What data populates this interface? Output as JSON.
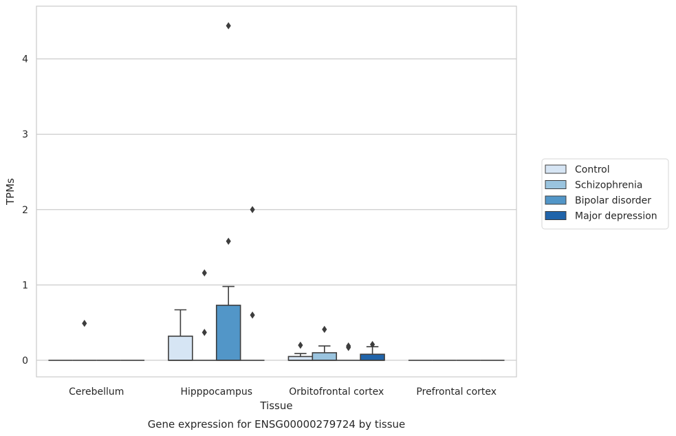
{
  "chart_data": {
    "type": "box",
    "title": "Gene expression for ENSG00000279724 by tissue",
    "xlabel": "Tissue",
    "ylabel": "TPMs",
    "ylim": [
      -0.22,
      4.7
    ],
    "yticks": [
      0,
      1,
      2,
      3,
      4
    ],
    "grid": "y",
    "legend_position": "right",
    "categories": [
      "Cerebellum",
      "Hipppocampus",
      "Orbitofrontal cortex",
      "Prefrontal cortex"
    ],
    "series": [
      {
        "name": "Control",
        "color": "#d6e5f4",
        "boxes": [
          {
            "q1": 0,
            "median": 0,
            "q3": 0,
            "whisker_low": 0,
            "whisker_high": 0,
            "outliers": []
          },
          {
            "q1": 0,
            "median": 0,
            "q3": 0.32,
            "whisker_low": 0,
            "whisker_high": 0.67,
            "outliers": []
          },
          {
            "q1": 0,
            "median": 0,
            "q3": 0.05,
            "whisker_low": 0,
            "whisker_high": 0.09,
            "outliers": [
              0.2
            ]
          },
          {
            "q1": 0,
            "median": 0,
            "q3": 0,
            "whisker_low": 0,
            "whisker_high": 0,
            "outliers": []
          }
        ]
      },
      {
        "name": "Schizophrenia",
        "color": "#9ac4df",
        "boxes": [
          {
            "q1": 0,
            "median": 0,
            "q3": 0,
            "whisker_low": 0,
            "whisker_high": 0,
            "outliers": [
              0.49
            ]
          },
          {
            "q1": 0,
            "median": 0,
            "q3": 0,
            "whisker_low": 0,
            "whisker_high": 0,
            "outliers": [
              1.16,
              0.37
            ]
          },
          {
            "q1": 0,
            "median": 0,
            "q3": 0.1,
            "whisker_low": 0,
            "whisker_high": 0.19,
            "outliers": [
              0.41
            ]
          },
          {
            "q1": 0,
            "median": 0,
            "q3": 0,
            "whisker_low": 0,
            "whisker_high": 0,
            "outliers": []
          }
        ]
      },
      {
        "name": "Bipolar disorder",
        "color": "#5296c8",
        "boxes": [
          {
            "q1": 0,
            "median": 0,
            "q3": 0,
            "whisker_low": 0,
            "whisker_high": 0,
            "outliers": []
          },
          {
            "q1": 0,
            "median": 0,
            "q3": 0.73,
            "whisker_low": 0,
            "whisker_high": 0.98,
            "outliers": [
              1.58,
              4.44
            ]
          },
          {
            "q1": 0,
            "median": 0,
            "q3": 0,
            "whisker_low": 0,
            "whisker_high": 0,
            "outliers": [
              0.19,
              0.17
            ]
          },
          {
            "q1": 0,
            "median": 0,
            "q3": 0,
            "whisker_low": 0,
            "whisker_high": 0,
            "outliers": []
          }
        ]
      },
      {
        "name": "Major depression",
        "color": "#2064aa",
        "boxes": [
          {
            "q1": 0,
            "median": 0,
            "q3": 0,
            "whisker_low": 0,
            "whisker_high": 0,
            "outliers": []
          },
          {
            "q1": 0,
            "median": 0,
            "q3": 0,
            "whisker_low": 0,
            "whisker_high": 0,
            "outliers": [
              2.0,
              0.6
            ]
          },
          {
            "q1": 0,
            "median": 0,
            "q3": 0.08,
            "whisker_low": 0,
            "whisker_high": 0.18,
            "outliers": [
              0.21
            ]
          },
          {
            "q1": 0,
            "median": 0,
            "q3": 0,
            "whisker_low": 0,
            "whisker_high": 0,
            "outliers": []
          }
        ]
      }
    ]
  }
}
